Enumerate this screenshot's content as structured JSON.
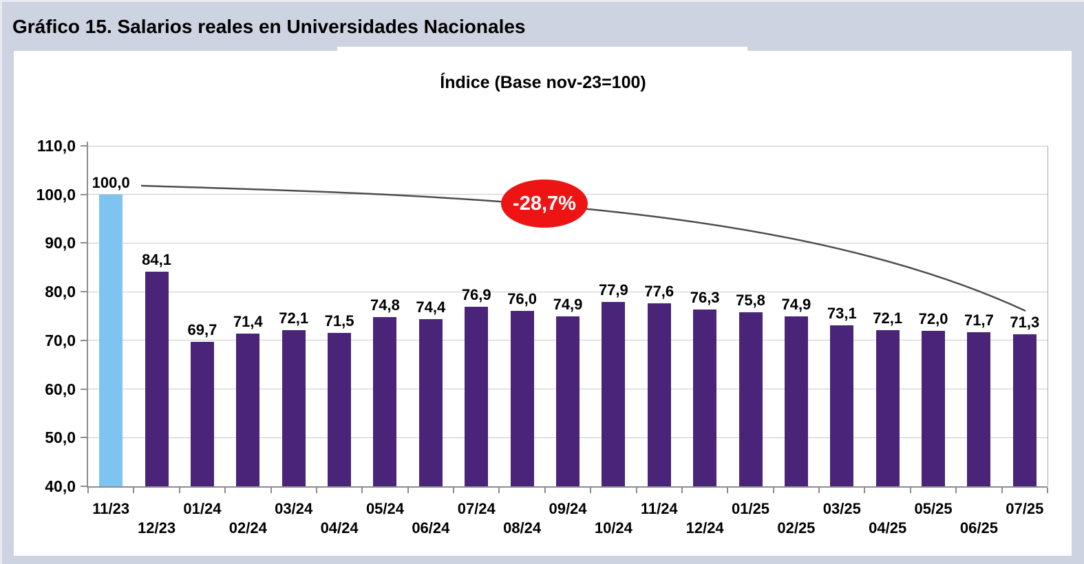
{
  "header": {
    "title": "Gráfico 15. Salarios reales en Universidades Nacionales"
  },
  "chart_data": {
    "type": "bar",
    "title": "Índice (Base nov-23=100)",
    "categories": [
      "11/23",
      "12/23",
      "01/24",
      "02/24",
      "03/24",
      "04/24",
      "05/24",
      "06/24",
      "07/24",
      "08/24",
      "09/24",
      "10/24",
      "11/24",
      "12/24",
      "01/25",
      "02/25",
      "03/25",
      "04/25",
      "05/25",
      "06/25",
      "07/25"
    ],
    "values": [
      100.0,
      84.1,
      69.7,
      71.4,
      72.1,
      71.5,
      74.8,
      74.4,
      76.9,
      76.0,
      74.9,
      77.9,
      77.6,
      76.3,
      75.8,
      74.9,
      73.1,
      72.1,
      72.0,
      71.7,
      71.3
    ],
    "value_labels": [
      "100,0",
      "84,1",
      "69,7",
      "71,4",
      "72,1",
      "71,5",
      "74,8",
      "74,4",
      "76,9",
      "76,0",
      "74,9",
      "77,9",
      "77,6",
      "76,3",
      "75,8",
      "74,9",
      "73,1",
      "72,1",
      "72,0",
      "71,7",
      "71,3"
    ],
    "ylim": [
      40,
      110
    ],
    "ytick_step": 10,
    "ytick_labels": [
      "40,0",
      "50,0",
      "60,0",
      "70,0",
      "80,0",
      "90,0",
      "100,0",
      "110,0"
    ],
    "grid": true,
    "legend": "none",
    "xlabel": "",
    "ylabel": "",
    "annotation": {
      "label": "-28,7%",
      "shape": "ellipse"
    },
    "trend_line": {
      "from_category": "11/23",
      "to_category": "07/25"
    },
    "colors": {
      "first_bar": "#7dc5f0",
      "bars": "#4a2478",
      "trend_line": "#4d4d4d",
      "annotation_fill": "#ee1414",
      "annotation_text": "#ffffff",
      "background": "#ced3e1",
      "panel": "#ffffff",
      "gridline": "#c9c9c9",
      "axis": "#8c8c8c"
    }
  }
}
